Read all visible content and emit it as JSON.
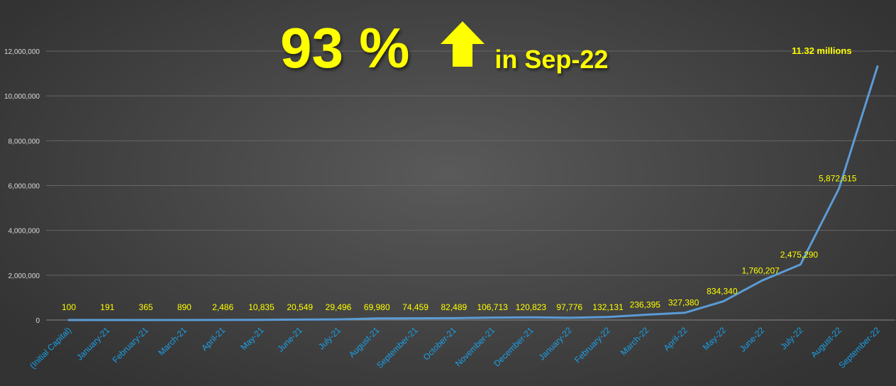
{
  "headline": {
    "percent": "93 %",
    "suffix": "in Sep-22",
    "icon": "up-arrow-icon",
    "color": "#ffff00"
  },
  "final_note": "11.32 millions",
  "chart_data": {
    "type": "line",
    "title": "",
    "xlabel": "",
    "ylabel": "",
    "ylim": [
      0,
      12000000
    ],
    "y_ticks": [
      "0",
      "2,000,000",
      "4,000,000",
      "6,000,000",
      "8,000,000",
      "10,000,000",
      "12,000,000"
    ],
    "grid": true,
    "legend": "none",
    "line_color": "#5b9bd5",
    "label_color": "#ffff00",
    "category_color": "#1aa0e8",
    "categories": [
      "(Initial Capital)",
      "January-21",
      "February-21",
      "March-21",
      "April-21",
      "May-21",
      "June-21",
      "July-21",
      "August-21",
      "September-21",
      "October-21",
      "November-21",
      "December-21",
      "January-22",
      "February-22",
      "March-22",
      "April-22",
      "May-22",
      "June-22",
      "July-22",
      "August-22",
      "September-22"
    ],
    "series": [
      {
        "values": [
          100,
          191,
          365,
          890,
          2486,
          10835,
          20549,
          29496,
          69980,
          74459,
          82489,
          106713,
          120823,
          97776,
          132131,
          236395,
          327380,
          834340,
          1760207,
          2475290,
          5872615,
          11320000
        ],
        "data_labels": [
          "100",
          "191",
          "365",
          "890",
          "2,486",
          "10,835",
          "20,549",
          "29,496",
          "69,980",
          "74,459",
          "82,489",
          "106,713",
          "120,823",
          "97,776",
          "132,131",
          "236,395",
          "327,380",
          "834,340",
          "1,760,207",
          "2,475,290",
          "5,872,615",
          ""
        ]
      }
    ]
  }
}
